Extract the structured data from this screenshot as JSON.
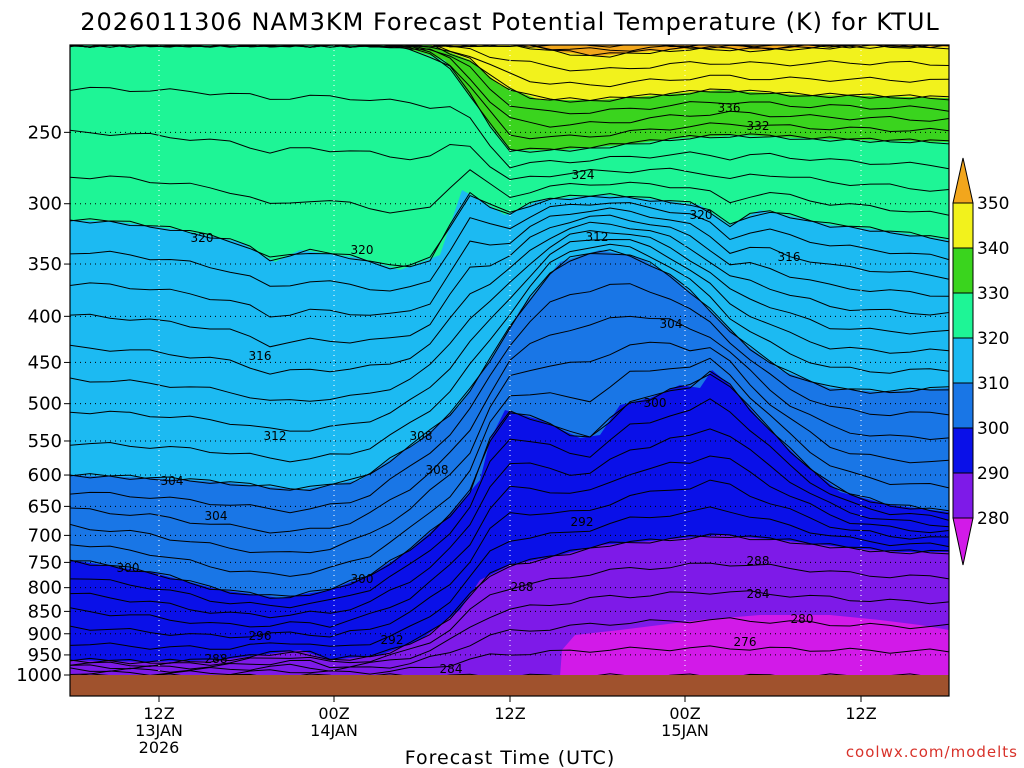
{
  "chart_data": {
    "type": "area",
    "title": "2026011306 NAM3KM Forecast Potential Temperature (K) for KTUL",
    "xlabel": "Forecast Time (UTC)",
    "credit": "coolwx.com/modelts",
    "y_ticks": [
      "250",
      "300",
      "350",
      "400",
      "450",
      "500",
      "550",
      "600",
      "650",
      "700",
      "750",
      "800",
      "850",
      "900",
      "950",
      "1000"
    ],
    "ylim": [
      1000,
      200
    ],
    "x_ticks": [
      {
        "line1": "12Z",
        "line2": "13JAN",
        "line3": "2026"
      },
      {
        "line1": "00Z",
        "line2": "14JAN",
        "line3": ""
      },
      {
        "line1": "12Z",
        "line2": "",
        "line3": ""
      },
      {
        "line1": "00Z",
        "line2": "15JAN",
        "line3": ""
      },
      {
        "line1": "12Z",
        "line2": "",
        "line3": ""
      }
    ],
    "colorbar": {
      "labels": [
        "350",
        "340",
        "330",
        "320",
        "310",
        "300",
        "290",
        "280"
      ],
      "colors": [
        "#f2a61c",
        "#f2f21c",
        "#3ad41e",
        "#1ef596",
        "#1cbaf2",
        "#1976e6",
        "#0a10e8",
        "#7e1ae8",
        "#d21ae8"
      ]
    },
    "contour_labels": [
      "336",
      "332",
      "324",
      "320",
      "320",
      "320",
      "312",
      "316",
      "304",
      "316",
      "300",
      "312",
      "308",
      "304",
      "308",
      "304",
      "292",
      "288",
      "300",
      "300",
      "288",
      "284",
      "280",
      "276",
      "296",
      "292",
      "288",
      "284"
    ]
  }
}
